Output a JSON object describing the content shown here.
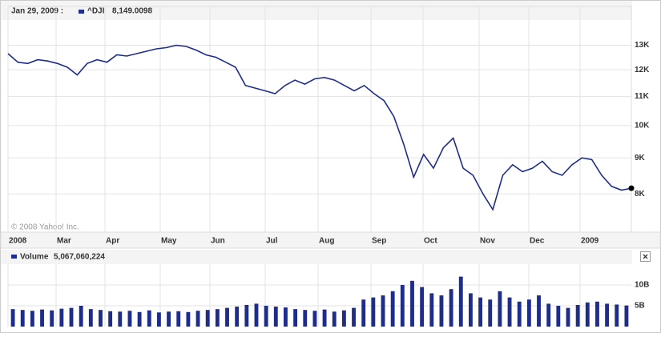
{
  "chart_data": [
    {
      "type": "line",
      "header_date": "Jan 29, 2009 :",
      "last_value_label": "8,149.0098",
      "copyright": "© 2008 Yahoo! Inc.",
      "log_scale": true,
      "grid": true,
      "series": [
        {
          "name": "^DJI",
          "color": "#1f2d8a",
          "values": [
            12650,
            12300,
            12250,
            12400,
            12350,
            12250,
            12100,
            11800,
            12250,
            12400,
            12300,
            12600,
            12550,
            12650,
            12750,
            12850,
            12900,
            13000,
            12950,
            12800,
            12600,
            12500,
            12300,
            12100,
            11400,
            11300,
            11200,
            11100,
            11400,
            11600,
            11450,
            11650,
            11700,
            11600,
            11400,
            11200,
            11400,
            11100,
            10850,
            10300,
            9400,
            8450,
            9100,
            8700,
            9300,
            9600,
            8700,
            8500,
            8000,
            7600,
            8500,
            8800,
            8600,
            8700,
            8900,
            8600,
            8500,
            8800,
            9000,
            8950,
            8500,
            8200,
            8100,
            8149
          ]
        }
      ],
      "ylim": [
        7060,
        14760
      ],
      "yticks": [
        {
          "value": 8000,
          "label": "8K"
        },
        {
          "value": 9000,
          "label": "9K"
        },
        {
          "value": 10000,
          "label": "10K"
        },
        {
          "value": 11000,
          "label": "11K"
        },
        {
          "value": 12000,
          "label": "12K"
        },
        {
          "value": 13000,
          "label": "13K"
        }
      ],
      "xticks": [
        "2008",
        "Mar",
        "Apr",
        "May",
        "Jun",
        "Jul",
        "Aug",
        "Sep",
        "Oct",
        "Nov",
        "Dec",
        "2009"
      ]
    },
    {
      "type": "bar",
      "series": [
        {
          "name": "Volume",
          "color": "#1f2d8a",
          "values": [
            4.2,
            4.0,
            3.8,
            4.1,
            3.9,
            4.3,
            4.5,
            5.0,
            4.2,
            4.0,
            3.7,
            3.6,
            3.8,
            3.5,
            3.9,
            3.4,
            3.6,
            3.7,
            3.5,
            3.8,
            4.0,
            4.2,
            4.5,
            4.8,
            5.2,
            5.5,
            5.0,
            4.8,
            4.6,
            4.2,
            4.0,
            3.8,
            4.1,
            3.6,
            3.9,
            4.5,
            6.5,
            7.0,
            7.5,
            8.5,
            10.0,
            11.0,
            9.5,
            8.0,
            7.5,
            9.0,
            12.0,
            8.0,
            7.0,
            6.5,
            8.5,
            7.0,
            6.0,
            6.5,
            7.5,
            5.5,
            5.0,
            4.5,
            5.2,
            5.8,
            6.0,
            5.5,
            5.3,
            5.07
          ]
        }
      ],
      "value_label": "5,067,060,224",
      "ylim": [
        0,
        15
      ],
      "yticks": [
        {
          "value": 5,
          "label": "5B"
        },
        {
          "value": 10,
          "label": "10B"
        }
      ]
    }
  ]
}
